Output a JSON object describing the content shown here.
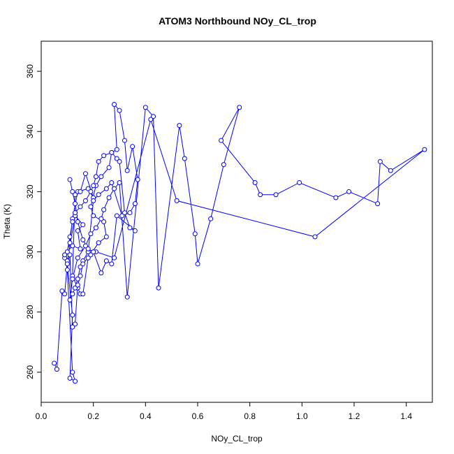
{
  "chart_data": {
    "type": "line",
    "title": "ATOM3 Northbound NOy_CL_trop",
    "xlabel": "NOy_CL_trop",
    "ylabel": "Theta (K)",
    "xlim": [
      0.0,
      1.5
    ],
    "ylim": [
      250,
      370
    ],
    "x_ticks": [
      0.0,
      0.2,
      0.4,
      0.6,
      0.8,
      1.0,
      1.2,
      1.4
    ],
    "x_tick_labels": [
      "0.0",
      "0.2",
      "0.4",
      "0.6",
      "0.8",
      "1.0",
      "1.2",
      "1.4"
    ],
    "y_ticks": [
      260,
      280,
      300,
      320,
      340,
      360
    ],
    "y_tick_labels": [
      "260",
      "280",
      "300",
      "320",
      "340",
      "360"
    ],
    "grid": false,
    "series": [
      {
        "color": "#0000ff",
        "marker": "open-circle",
        "x": [
          0.05,
          0.06,
          0.08,
          0.09,
          0.1,
          0.12,
          0.11,
          0.13,
          0.12,
          0.1,
          0.09,
          0.12,
          0.15,
          0.14,
          0.16,
          0.13,
          0.1,
          0.09,
          0.11,
          0.12,
          0.14,
          0.18,
          0.2,
          0.17,
          0.15,
          0.13,
          0.12,
          0.14,
          0.15,
          0.16,
          0.18,
          0.22,
          0.25,
          0.24,
          0.2,
          0.19,
          0.21,
          0.23,
          0.26,
          0.27,
          0.29,
          0.28,
          0.3,
          0.32,
          0.33,
          0.35,
          0.37,
          0.36,
          0.34,
          0.31,
          0.27,
          0.25,
          0.22,
          0.2,
          0.18,
          0.16,
          0.15,
          0.14,
          0.13,
          0.12,
          0.11,
          0.12,
          0.14,
          0.17,
          0.19,
          0.21,
          0.23,
          0.24,
          0.26,
          0.28,
          0.3,
          0.33,
          0.4,
          0.43,
          0.45,
          0.53,
          0.55,
          0.59,
          0.6,
          0.65,
          0.7,
          0.76,
          0.69,
          0.82,
          0.84,
          0.9,
          0.99,
          1.13,
          1.18,
          1.29,
          1.3,
          1.34,
          1.47,
          1.05,
          0.52,
          0.42,
          0.28,
          0.21,
          0.19,
          0.16,
          0.15,
          0.14,
          0.13,
          0.12,
          0.11,
          0.1,
          0.09,
          0.1,
          0.11,
          0.12,
          0.13,
          0.15,
          0.17,
          0.19,
          0.2,
          0.21,
          0.22,
          0.24,
          0.27,
          0.29,
          0.3,
          0.32,
          0.34,
          0.36,
          0.29,
          0.27,
          0.25,
          0.23,
          0.2,
          0.18,
          0.16,
          0.14,
          0.13,
          0.12,
          0.11
        ],
        "y": [
          263,
          261,
          287,
          286,
          296,
          279,
          258,
          257,
          260,
          294,
          299,
          302,
          301,
          307,
          309,
          312,
          297,
          298,
          303,
          311,
          320,
          321,
          318,
          326,
          320,
          319,
          292,
          288,
          286,
          286,
          298,
          303,
          305,
          310,
          312,
          315,
          322,
          325,
          328,
          333,
          334,
          349,
          347,
          337,
          327,
          335,
          324,
          316,
          313,
          312,
          323,
          321,
          319,
          317,
          300,
          297,
          295,
          291,
          288,
          286,
          284,
          291,
          298,
          302,
          306,
          308,
          311,
          314,
          318,
          321,
          323,
          285,
          348,
          345,
          288,
          342,
          331,
          306,
          296,
          311,
          329,
          348,
          337,
          323,
          319,
          319,
          323,
          318,
          320,
          316,
          330,
          327,
          334,
          305,
          317,
          344,
          298,
          300,
          299,
          296,
          292,
          289,
          276,
          275,
          299,
          296,
          299,
          300,
          305,
          310,
          313,
          315,
          317,
          320,
          322,
          325,
          330,
          332,
          333,
          331,
          330,
          313,
          308,
          307,
          312,
          296,
          297,
          293,
          300,
          301,
          304,
          310,
          316,
          320,
          324
        ]
      }
    ]
  }
}
